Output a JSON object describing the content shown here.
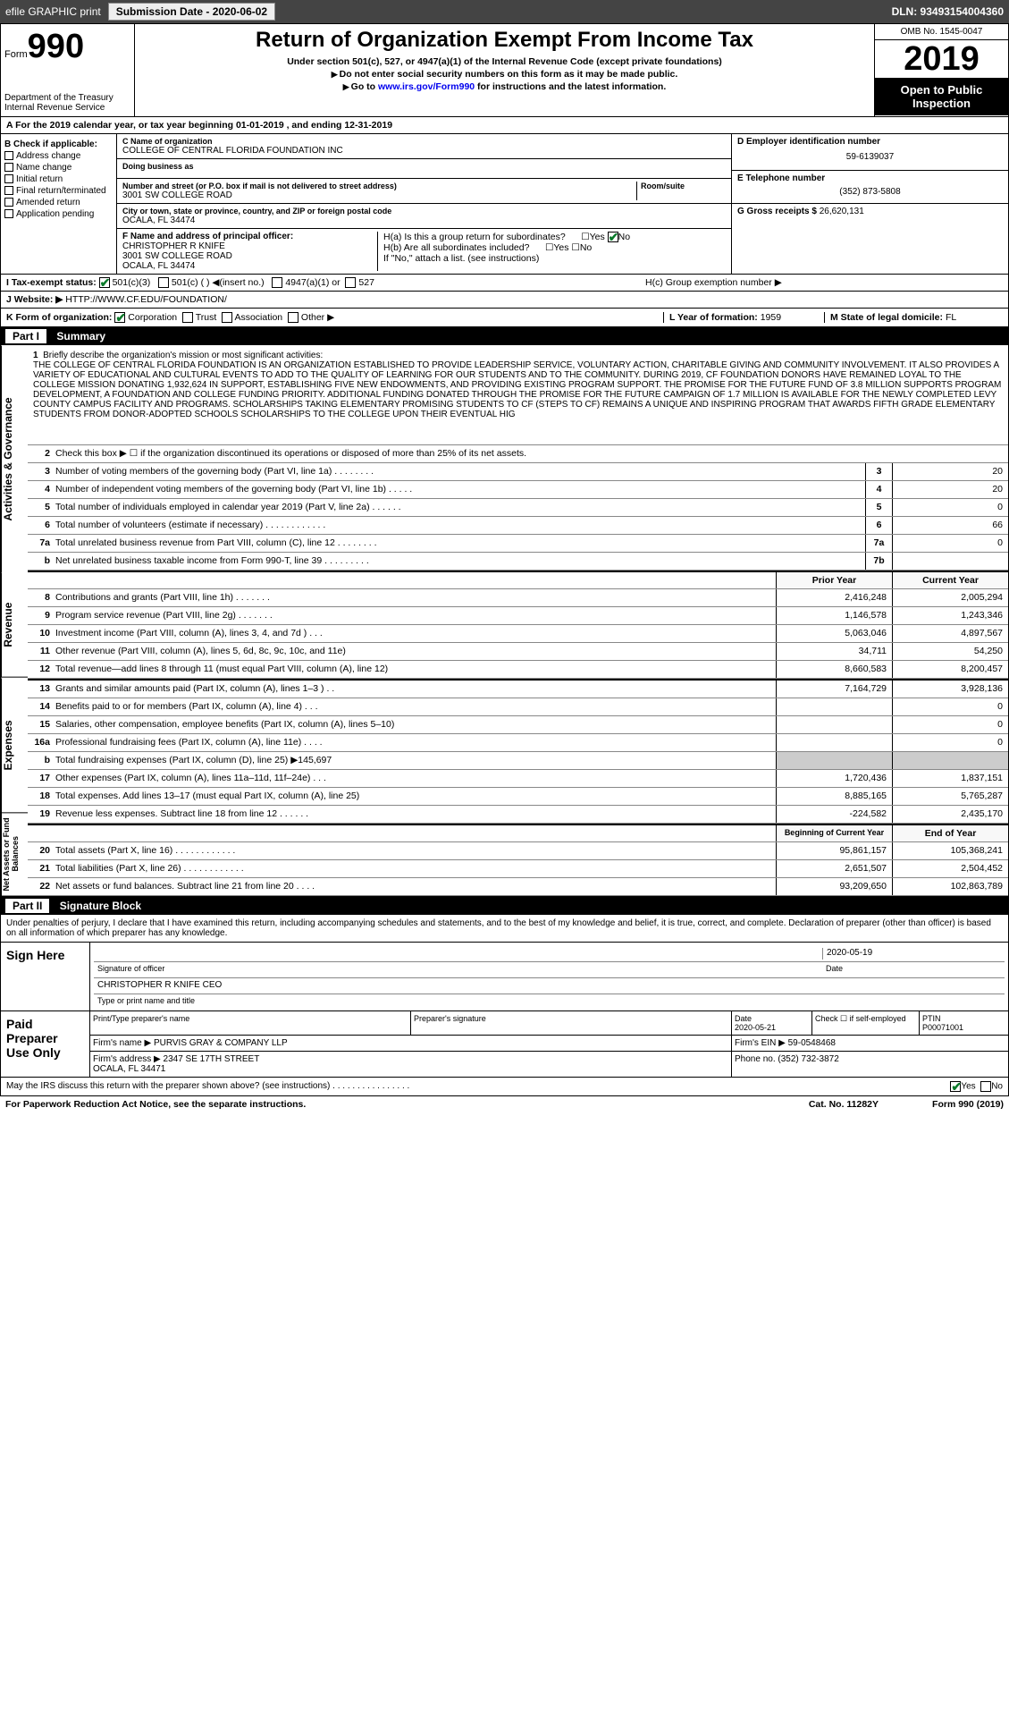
{
  "topbar": {
    "efile": "efile GRAPHIC print",
    "sub_btn": "Submission Date - 2020-06-02",
    "dln": "DLN: 93493154004360"
  },
  "header": {
    "form_prefix": "Form",
    "form_no": "990",
    "dept": "Department of the Treasury\nInternal Revenue Service",
    "title": "Return of Organization Exempt From Income Tax",
    "sub1": "Under section 501(c), 527, or 4947(a)(1) of the Internal Revenue Code (except private foundations)",
    "sub2": "Do not enter social security numbers on this form as it may be made public.",
    "sub3": "Go to www.irs.gov/Form990 for instructions and the latest information.",
    "link": "www.irs.gov/Form990",
    "omb": "OMB No. 1545-0047",
    "year": "2019",
    "inspect": "Open to Public Inspection"
  },
  "rowA": "A  For the 2019 calendar year, or tax year beginning 01-01-2019   , and ending 12-31-2019",
  "sectionB": {
    "label": "B Check if applicable:",
    "opts": [
      "Address change",
      "Name change",
      "Initial return",
      "Final return/terminated",
      "Amended return",
      "Application pending"
    ]
  },
  "sectionC": {
    "name_lbl": "C Name of organization",
    "name": "COLLEGE OF CENTRAL FLORIDA FOUNDATION INC",
    "dba_lbl": "Doing business as",
    "dba": "",
    "street_lbl": "Number and street (or P.O. box if mail is not delivered to street address)",
    "street": "3001 SW COLLEGE ROAD",
    "room_lbl": "Room/suite",
    "city_lbl": "City or town, state or province, country, and ZIP or foreign postal code",
    "city": "OCALA, FL  34474",
    "officer_lbl": "F  Name and address of principal officer:",
    "officer": "CHRISTOPHER R KNIFE\n3001 SW COLLEGE ROAD\nOCALA, FL  34474"
  },
  "sectionD": {
    "ein_lbl": "D Employer identification number",
    "ein": "59-6139037",
    "tel_lbl": "E Telephone number",
    "tel": "(352) 873-5808",
    "gross_lbl": "G Gross receipts $",
    "gross": "26,620,131"
  },
  "sectionH": {
    "ha": "H(a)  Is this a group return for subordinates?",
    "hb": "H(b)  Are all subordinates included?",
    "hb_note": "If \"No,\" attach a list. (see instructions)",
    "hc": "H(c)  Group exemption number ▶",
    "yes": "Yes",
    "no": "No"
  },
  "rowI": {
    "label": "I   Tax-exempt status:",
    "o1": "501(c)(3)",
    "o2": "501(c) (   ) ◀(insert no.)",
    "o3": "4947(a)(1) or",
    "o4": "527"
  },
  "rowJ": {
    "label": "J   Website: ▶",
    "url": "HTTP://WWW.CF.EDU/FOUNDATION/"
  },
  "rowK": {
    "label": "K Form of organization:",
    "opts": [
      "Corporation",
      "Trust",
      "Association",
      "Other ▶"
    ],
    "l_lbl": "L Year of formation:",
    "l_val": "1959",
    "m_lbl": "M State of legal domicile:",
    "m_val": "FL"
  },
  "part1": {
    "hdr_no": "Part I",
    "hdr_txt": "Summary",
    "vtabs": [
      "Activities & Governance",
      "Revenue",
      "Expenses",
      "Net Assets or Fund Balances"
    ],
    "line1_lbl": "Briefly describe the organization's mission or most significant activities:",
    "mission": "THE COLLEGE OF CENTRAL FLORIDA FOUNDATION IS AN ORGANIZATION ESTABLISHED TO PROVIDE LEADERSHIP SERVICE, VOLUNTARY ACTION, CHARITABLE GIVING AND COMMUNITY INVOLVEMENT. IT ALSO PROVIDES A VARIETY OF EDUCATIONAL AND CULTURAL EVENTS TO ADD TO THE QUALITY OF LEARNING FOR OUR STUDENTS AND TO THE COMMUNITY. DURING 2019, CF FOUNDATION DONORS HAVE REMAINED LOYAL TO THE COLLEGE MISSION DONATING 1,932,624 IN SUPPORT, ESTABLISHING FIVE NEW ENDOWMENTS, AND PROVIDING EXISTING PROGRAM SUPPORT. THE PROMISE FOR THE FUTURE FUND OF 3.8 MILLION SUPPORTS PROGRAM DEVELOPMENT, A FOUNDATION AND COLLEGE FUNDING PRIORITY. ADDITIONAL FUNDING DONATED THROUGH THE PROMISE FOR THE FUTURE CAMPAIGN OF 1.7 MILLION IS AVAILABLE FOR THE NEWLY COMPLETED LEVY COUNTY CAMPUS FACILITY AND PROGRAMS. SCHOLARSHIPS TAKING ELEMENTARY PROMISING STUDENTS TO CF (STEPS TO CF) REMAINS A UNIQUE AND INSPIRING PROGRAM THAT AWARDS FIFTH GRADE ELEMENTARY STUDENTS FROM DONOR-ADOPTED SCHOOLS SCHOLARSHIPS TO THE COLLEGE UPON THEIR EVENTUAL HIG",
    "line2": "Check this box ▶ ☐ if the organization discontinued its operations or disposed of more than 25% of its net assets.",
    "gov_lines": [
      {
        "n": "3",
        "d": "Number of voting members of the governing body (Part VI, line 1a)   .    .    .    .    .    .    .    .",
        "c": "3",
        "v": "20"
      },
      {
        "n": "4",
        "d": "Number of independent voting members of the governing body (Part VI, line 1b)    .    .    .    .    .",
        "c": "4",
        "v": "20"
      },
      {
        "n": "5",
        "d": "Total number of individuals employed in calendar year 2019 (Part V, line 2a)   .    .    .    .    .    .",
        "c": "5",
        "v": "0"
      },
      {
        "n": "6",
        "d": "Total number of volunteers (estimate if necessary)   .    .    .    .    .    .    .    .    .    .    .    .",
        "c": "6",
        "v": "66"
      },
      {
        "n": "7a",
        "d": "Total unrelated business revenue from Part VIII, column (C), line 12   .    .    .    .    .    .    .    .",
        "c": "7a",
        "v": "0"
      },
      {
        "n": "b",
        "d": "Net unrelated business taxable income from Form 990-T, line 39    .    .    .    .    .    .    .    .    .",
        "c": "7b",
        "v": ""
      }
    ],
    "py_hdr": "Prior Year",
    "cy_hdr": "Current Year",
    "rev_lines": [
      {
        "n": "8",
        "d": "Contributions and grants (Part VIII, line 1h)   .    .    .    .    .    .    .",
        "py": "2,416,248",
        "cy": "2,005,294"
      },
      {
        "n": "9",
        "d": "Program service revenue (Part VIII, line 2g)   .    .    .    .    .    .    .",
        "py": "1,146,578",
        "cy": "1,243,346"
      },
      {
        "n": "10",
        "d": "Investment income (Part VIII, column (A), lines 3, 4, and 7d )   .    .    .",
        "py": "5,063,046",
        "cy": "4,897,567"
      },
      {
        "n": "11",
        "d": "Other revenue (Part VIII, column (A), lines 5, 6d, 8c, 9c, 10c, and 11e)",
        "py": "34,711",
        "cy": "54,250"
      },
      {
        "n": "12",
        "d": "Total revenue—add lines 8 through 11 (must equal Part VIII, column (A), line 12)",
        "py": "8,660,583",
        "cy": "8,200,457"
      }
    ],
    "exp_lines": [
      {
        "n": "13",
        "d": "Grants and similar amounts paid (Part IX, column (A), lines 1–3 )   .    .",
        "py": "7,164,729",
        "cy": "3,928,136"
      },
      {
        "n": "14",
        "d": "Benefits paid to or for members (Part IX, column (A), line 4)   .    .    .",
        "py": "",
        "cy": "0"
      },
      {
        "n": "15",
        "d": "Salaries, other compensation, employee benefits (Part IX, column (A), lines 5–10)",
        "py": "",
        "cy": "0"
      },
      {
        "n": "16a",
        "d": "Professional fundraising fees (Part IX, column (A), line 11e)   .    .    .    .",
        "py": "",
        "cy": "0"
      },
      {
        "n": "b",
        "d": "Total fundraising expenses (Part IX, column (D), line 25) ▶145,697",
        "py": "",
        "cy": "",
        "shaded": true
      },
      {
        "n": "17",
        "d": "Other expenses (Part IX, column (A), lines 11a–11d, 11f–24e)   .    .    .",
        "py": "1,720,436",
        "cy": "1,837,151"
      },
      {
        "n": "18",
        "d": "Total expenses. Add lines 13–17 (must equal Part IX, column (A), line 25)",
        "py": "8,885,165",
        "cy": "5,765,287"
      },
      {
        "n": "19",
        "d": "Revenue less expenses. Subtract line 18 from line 12   .    .    .    .    .    .",
        "py": "-224,582",
        "cy": "2,435,170"
      }
    ],
    "boy_hdr": "Beginning of Current Year",
    "eoy_hdr": "End of Year",
    "net_lines": [
      {
        "n": "20",
        "d": "Total assets (Part X, line 16)   .    .    .    .    .    .    .    .    .    .    .    .",
        "py": "95,861,157",
        "cy": "105,368,241"
      },
      {
        "n": "21",
        "d": "Total liabilities (Part X, line 26)   .    .    .    .    .    .    .    .    .    .    .    .",
        "py": "2,651,507",
        "cy": "2,504,452"
      },
      {
        "n": "22",
        "d": "Net assets or fund balances. Subtract line 21 from line 20   .    .    .    .",
        "py": "93,209,650",
        "cy": "102,863,789"
      }
    ]
  },
  "part2": {
    "hdr_no": "Part II",
    "hdr_txt": "Signature Block",
    "penalty": "Under penalties of perjury, I declare that I have examined this return, including accompanying schedules and statements, and to the best of my knowledge and belief, it is true, correct, and complete. Declaration of preparer (other than officer) is based on all information of which preparer has any knowledge.",
    "sign_here": "Sign Here",
    "sig_officer_lbl": "Signature of officer",
    "sig_date": "2020-05-19",
    "date_lbl": "Date",
    "officer_name": "CHRISTOPHER R KNIFE  CEO",
    "officer_type_lbl": "Type or print name and title",
    "paid": "Paid Preparer Use Only",
    "prep_name_lbl": "Print/Type preparer's name",
    "prep_sig_lbl": "Preparer's signature",
    "prep_date_lbl": "Date",
    "prep_date": "2020-05-21",
    "self_emp": "Check ☐ if self-employed",
    "ptin_lbl": "PTIN",
    "ptin": "P00071001",
    "firm_name_lbl": "Firm's name   ▶",
    "firm_name": "PURVIS GRAY & COMPANY LLP",
    "firm_ein_lbl": "Firm's EIN ▶",
    "firm_ein": "59-0548468",
    "firm_addr_lbl": "Firm's address ▶",
    "firm_addr": "2347 SE 17TH STREET\nOCALA, FL  34471",
    "phone_lbl": "Phone no.",
    "phone": "(352) 732-3872",
    "discuss": "May the IRS discuss this return with the preparer shown above? (see instructions)    .    .    .    .    .    .    .    .    .    .    .    .    .    .    .    .",
    "discuss_yes": "Yes",
    "discuss_no": "No"
  },
  "footer": {
    "left": "For Paperwork Reduction Act Notice, see the separate instructions.",
    "mid": "Cat. No. 11282Y",
    "right": "Form 990 (2019)"
  }
}
